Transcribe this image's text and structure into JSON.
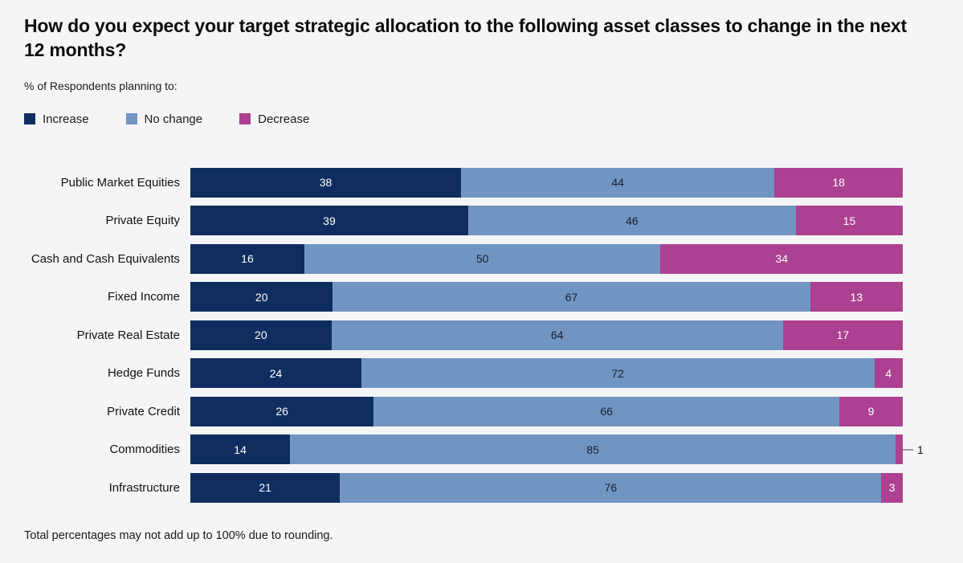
{
  "page": {
    "title": "How do you expect your target strategic allocation to the following asset classes to change in the next 12 months?",
    "subtitle": "% of Respondents planning to:",
    "footnote": "Total percentages may not add up to 100% due to rounding."
  },
  "colors": {
    "background": "#f5f5f7",
    "increase": "#0f2e5f",
    "no_change": "#7195c3",
    "decrease": "#ab4190",
    "leader_line": "#9b9b9d",
    "text_dark": "#121214",
    "text_light": "#ffffff"
  },
  "legend": {
    "items": [
      {
        "label": "Increase",
        "color": "#0f2e5f"
      },
      {
        "label": "No change",
        "color": "#7195c3"
      },
      {
        "label": "Decrease",
        "color": "#ab4190"
      }
    ]
  },
  "chart_data": {
    "type": "bar",
    "orientation": "horizontal",
    "stacked": true,
    "unit": "%",
    "xlim": [
      0,
      100
    ],
    "grid": false,
    "legend_position": "top-left",
    "value_labels": "inside",
    "min_inside_label_value": 2,
    "categories": [
      "Public Market Equities",
      "Private Equity",
      "Cash and Cash Equivalents",
      "Fixed Income",
      "Private Real Estate",
      "Hedge Funds",
      "Private Credit",
      "Commodities",
      "Infrastructure"
    ],
    "series": [
      {
        "name": "Increase",
        "color": "#0f2e5f",
        "label_color": "#ffffff",
        "values": [
          38,
          39,
          16,
          20,
          20,
          24,
          26,
          14,
          21
        ]
      },
      {
        "name": "No change",
        "color": "#7195c3",
        "label_color": "#16202e",
        "values": [
          44,
          46,
          50,
          67,
          64,
          72,
          66,
          85,
          76
        ]
      },
      {
        "name": "Decrease",
        "color": "#ab4190",
        "label_color": "#ffffff",
        "values": [
          18,
          15,
          34,
          13,
          17,
          4,
          9,
          1,
          3
        ]
      }
    ]
  }
}
